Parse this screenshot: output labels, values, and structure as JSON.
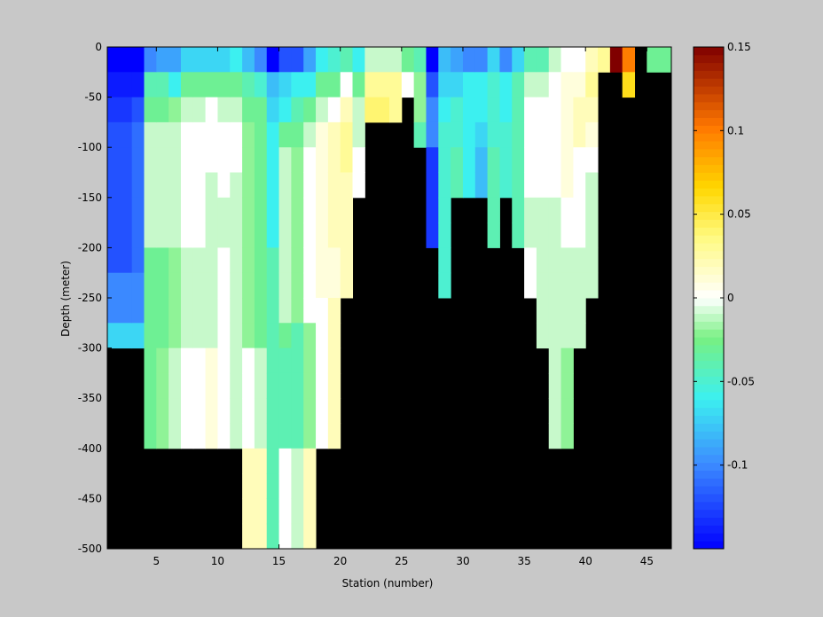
{
  "chart_data": {
    "type": "heatmap",
    "title": "",
    "xlabel": "Station (number)",
    "ylabel": "Depth (meter)",
    "xlim": [
      1,
      47
    ],
    "ylim": [
      -500,
      0
    ],
    "xticks": [
      5,
      10,
      15,
      20,
      25,
      30,
      35,
      40,
      45
    ],
    "yticks": [
      0,
      -50,
      -100,
      -150,
      -200,
      -250,
      -300,
      -350,
      -400,
      -450,
      -500
    ],
    "depth_bin_m": 25,
    "colorbar": {
      "range": [
        -0.15,
        0.15
      ],
      "ticks": [
        0.15,
        0.1,
        0.05,
        0,
        -0.05,
        -0.1
      ],
      "tick_labels": [
        "0.15",
        "0.1",
        "0.05",
        "0",
        "-0.05",
        "-0.1"
      ],
      "colormap": "jet-white-center"
    },
    "missing_color": "#000000",
    "columns": [
      {
        "x0": 1,
        "x1": 3,
        "bottom": -300,
        "values": [
          -0.15,
          -0.14,
          -0.13,
          -0.12,
          -0.12,
          -0.12,
          -0.12,
          -0.12,
          -0.12,
          -0.1,
          -0.1,
          -0.07
        ]
      },
      {
        "x0": 3,
        "x1": 4,
        "bottom": -300,
        "values": [
          -0.15,
          -0.14,
          -0.12,
          -0.11,
          -0.11,
          -0.11,
          -0.11,
          -0.11,
          -0.11,
          -0.1,
          -0.1,
          -0.07
        ]
      },
      {
        "x0": 4,
        "x1": 5,
        "bottom": -400,
        "values": [
          -0.1,
          -0.04,
          -0.03,
          -0.01,
          -0.01,
          -0.01,
          -0.01,
          -0.01,
          -0.03,
          -0.03,
          -0.03,
          -0.03,
          -0.03,
          -0.03,
          -0.03,
          -0.03
        ]
      },
      {
        "x0": 5,
        "x1": 6,
        "bottom": -400,
        "values": [
          -0.09,
          -0.04,
          -0.03,
          -0.01,
          -0.01,
          -0.01,
          -0.01,
          -0.01,
          -0.03,
          -0.03,
          -0.03,
          -0.03,
          -0.02,
          -0.02,
          -0.02,
          -0.02
        ]
      },
      {
        "x0": 6,
        "x1": 7,
        "bottom": -400,
        "values": [
          -0.09,
          -0.06,
          -0.02,
          -0.01,
          -0.01,
          -0.01,
          -0.01,
          -0.01,
          -0.02,
          -0.02,
          -0.02,
          -0.02,
          -0.01,
          -0.01,
          -0.01,
          -0.01
        ]
      },
      {
        "x0": 7,
        "x1": 8,
        "bottom": -400,
        "values": [
          -0.07,
          -0.03,
          -0.01,
          0.0,
          0.0,
          0.0,
          0.0,
          0.0,
          -0.01,
          -0.01,
          -0.01,
          -0.01,
          0.0,
          0.0,
          0.0,
          0.0
        ]
      },
      {
        "x0": 8,
        "x1": 9,
        "bottom": -400,
        "values": [
          -0.07,
          -0.03,
          -0.01,
          0.0,
          0.0,
          0.0,
          0.0,
          0.0,
          -0.01,
          -0.01,
          -0.01,
          -0.01,
          0.0,
          0.0,
          0.0,
          0.0
        ]
      },
      {
        "x0": 9,
        "x1": 10,
        "bottom": -400,
        "values": [
          -0.07,
          -0.03,
          0.0,
          0.0,
          0.0,
          -0.01,
          -0.01,
          -0.01,
          -0.01,
          -0.01,
          -0.01,
          -0.01,
          0.01,
          0.01,
          0.01,
          0.01
        ]
      },
      {
        "x0": 10,
        "x1": 11,
        "bottom": -400,
        "values": [
          -0.07,
          -0.03,
          -0.01,
          0.0,
          0.0,
          0.0,
          -0.01,
          -0.01,
          0.0,
          0.0,
          0.0,
          0.0,
          0.0,
          0.0,
          0.0,
          0.0
        ]
      },
      {
        "x0": 11,
        "x1": 12,
        "bottom": -400,
        "values": [
          -0.06,
          -0.03,
          -0.01,
          0.0,
          0.0,
          -0.01,
          -0.01,
          -0.01,
          -0.01,
          -0.01,
          -0.01,
          -0.01,
          -0.01,
          -0.01,
          -0.01,
          -0.01
        ]
      },
      {
        "x0": 12,
        "x1": 13,
        "bottom": -500,
        "values": [
          -0.08,
          -0.04,
          -0.03,
          -0.02,
          -0.02,
          -0.02,
          -0.02,
          -0.02,
          -0.02,
          -0.02,
          -0.02,
          -0.02,
          0.0,
          0.0,
          0.0,
          0.0,
          0.02,
          0.02,
          0.02,
          0.02
        ]
      },
      {
        "x0": 13,
        "x1": 14,
        "bottom": -500,
        "values": [
          -0.1,
          -0.05,
          -0.03,
          -0.03,
          -0.03,
          -0.03,
          -0.03,
          -0.03,
          -0.03,
          -0.03,
          -0.03,
          -0.03,
          -0.01,
          -0.01,
          -0.01,
          -0.01,
          0.02,
          0.02,
          0.02,
          0.02
        ]
      },
      {
        "x0": 14,
        "x1": 15,
        "bottom": -500,
        "values": [
          -0.15,
          -0.08,
          -0.07,
          -0.06,
          -0.06,
          -0.06,
          -0.06,
          -0.06,
          -0.04,
          -0.04,
          -0.04,
          -0.04,
          -0.04,
          -0.04,
          -0.04,
          -0.04,
          -0.04,
          -0.04,
          -0.04,
          -0.04
        ]
      },
      {
        "x0": 15,
        "x1": 16,
        "bottom": -500,
        "values": [
          -0.12,
          -0.07,
          -0.06,
          -0.03,
          -0.01,
          -0.01,
          -0.01,
          -0.01,
          -0.01,
          -0.01,
          -0.01,
          -0.03,
          -0.04,
          -0.04,
          -0.04,
          -0.04,
          0.0,
          0.0,
          0.0,
          0.0
        ]
      },
      {
        "x0": 16,
        "x1": 17,
        "bottom": -500,
        "values": [
          -0.12,
          -0.06,
          -0.04,
          -0.03,
          -0.02,
          -0.02,
          -0.02,
          -0.02,
          -0.02,
          -0.02,
          -0.02,
          -0.04,
          -0.04,
          -0.04,
          -0.04,
          -0.04,
          -0.01,
          -0.01,
          -0.01,
          -0.01
        ]
      },
      {
        "x0": 17,
        "x1": 18,
        "bottom": -500,
        "values": [
          -0.09,
          -0.06,
          -0.03,
          -0.01,
          0.0,
          0.0,
          0.0,
          0.0,
          0.0,
          0.0,
          0.0,
          -0.02,
          -0.02,
          -0.02,
          -0.02,
          -0.02,
          0.02,
          0.02,
          0.02,
          0.02
        ]
      },
      {
        "x0": 18,
        "x1": 19,
        "bottom": -400,
        "values": [
          -0.06,
          -0.03,
          -0.01,
          0.01,
          0.01,
          0.01,
          0.01,
          0.01,
          0.01,
          0.01,
          0.0,
          0.0,
          0.0,
          0.0,
          0.0,
          0.0
        ]
      },
      {
        "x0": 19,
        "x1": 20,
        "bottom": -400,
        "values": [
          -0.05,
          -0.03,
          0.0,
          0.02,
          0.02,
          0.02,
          0.02,
          0.02,
          0.01,
          0.01,
          0.02,
          0.02,
          0.02,
          0.02,
          0.02,
          0.02
        ]
      },
      {
        "x0": 20,
        "x1": 21,
        "bottom": -250,
        "values": [
          -0.04,
          0.0,
          0.02,
          0.03,
          0.03,
          0.02,
          0.02,
          0.02,
          0.02,
          0.02
        ]
      },
      {
        "x0": 21,
        "x1": 22,
        "bottom": -150,
        "values": [
          -0.06,
          -0.03,
          -0.01,
          -0.01,
          0.0,
          0.0
        ]
      },
      {
        "x0": 22,
        "x1": 24,
        "bottom": -75,
        "values": [
          -0.01,
          0.03,
          0.04
        ]
      },
      {
        "x0": 24,
        "x1": 25,
        "bottom": -75,
        "values": [
          -0.01,
          0.03,
          0.03
        ]
      },
      {
        "x0": 25,
        "x1": 26,
        "bottom": -50,
        "values": [
          -0.03,
          0.0
        ]
      },
      {
        "x0": 26,
        "x1": 27,
        "bottom": -100,
        "values": [
          -0.04,
          -0.02,
          -0.02,
          -0.04
        ]
      },
      {
        "x0": 27,
        "x1": 28,
        "bottom": -200,
        "values": [
          -0.15,
          -0.12,
          -0.1,
          -0.1,
          -0.13,
          -0.13,
          -0.13,
          -0.13
        ]
      },
      {
        "x0": 28,
        "x1": 29,
        "bottom": -250,
        "values": [
          -0.08,
          -0.07,
          -0.06,
          -0.05,
          -0.05,
          -0.05,
          -0.05,
          -0.05,
          -0.05,
          -0.05
        ]
      },
      {
        "x0": 29,
        "x1": 30,
        "bottom": -150,
        "values": [
          -0.09,
          -0.07,
          -0.05,
          -0.05,
          -0.04,
          -0.04
        ]
      },
      {
        "x0": 30,
        "x1": 31,
        "bottom": -150,
        "values": [
          -0.1,
          -0.06,
          -0.06,
          -0.06,
          -0.06,
          -0.06
        ]
      },
      {
        "x0": 31,
        "x1": 32,
        "bottom": -150,
        "values": [
          -0.1,
          -0.06,
          -0.06,
          -0.07,
          -0.08,
          -0.08
        ]
      },
      {
        "x0": 32,
        "x1": 33,
        "bottom": -200,
        "values": [
          -0.07,
          -0.05,
          -0.05,
          -0.05,
          -0.04,
          -0.04,
          -0.04,
          -0.04
        ]
      },
      {
        "x0": 33,
        "x1": 34,
        "bottom": -150,
        "values": [
          -0.1,
          -0.06,
          -0.06,
          -0.05,
          -0.05,
          -0.05
        ]
      },
      {
        "x0": 34,
        "x1": 35,
        "bottom": -200,
        "values": [
          -0.07,
          -0.04,
          -0.04,
          -0.04,
          -0.04,
          -0.04,
          -0.04,
          -0.04
        ]
      },
      {
        "x0": 35,
        "x1": 36,
        "bottom": -250,
        "values": [
          -0.04,
          -0.01,
          0.0,
          0.0,
          0.0,
          0.0,
          -0.01,
          -0.01,
          0.0,
          0.0
        ]
      },
      {
        "x0": 36,
        "x1": 37,
        "bottom": -300,
        "values": [
          -0.04,
          -0.01,
          0.0,
          0.0,
          0.0,
          0.0,
          -0.01,
          -0.01,
          -0.01,
          -0.01,
          -0.01,
          -0.01
        ]
      },
      {
        "x0": 37,
        "x1": 38,
        "bottom": -400,
        "values": [
          -0.01,
          0.0,
          0.0,
          0.0,
          0.0,
          0.0,
          -0.01,
          -0.01,
          -0.01,
          -0.01,
          -0.01,
          -0.01,
          -0.01,
          -0.01,
          -0.01,
          -0.01
        ]
      },
      {
        "x0": 38,
        "x1": 39,
        "bottom": -400,
        "values": [
          0.0,
          0.01,
          0.01,
          0.01,
          0.01,
          0.01,
          0.0,
          0.0,
          -0.01,
          -0.01,
          -0.01,
          -0.01,
          -0.02,
          -0.02,
          -0.02,
          -0.02
        ]
      },
      {
        "x0": 39,
        "x1": 40,
        "bottom": -300,
        "values": [
          0.0,
          0.01,
          0.02,
          0.02,
          0.0,
          0.0,
          0.0,
          0.0,
          -0.01,
          -0.01,
          -0.01,
          -0.01
        ]
      },
      {
        "x0": 40,
        "x1": 41,
        "bottom": -250,
        "values": [
          0.02,
          0.03,
          0.02,
          0.01,
          0.0,
          -0.01,
          -0.01,
          -0.01,
          -0.01,
          -0.01
        ]
      },
      {
        "x0": 41,
        "x1": 42,
        "bottom": -25,
        "values": [
          0.03
        ]
      },
      {
        "x0": 42,
        "x1": 43,
        "bottom": -25,
        "values": [
          0.15
        ]
      },
      {
        "x0": 43,
        "x1": 44,
        "bottom": -50,
        "values": [
          0.1,
          0.06
        ]
      },
      {
        "x0": 45,
        "x1": 47,
        "bottom": -25,
        "values": [
          -0.03
        ]
      }
    ]
  }
}
